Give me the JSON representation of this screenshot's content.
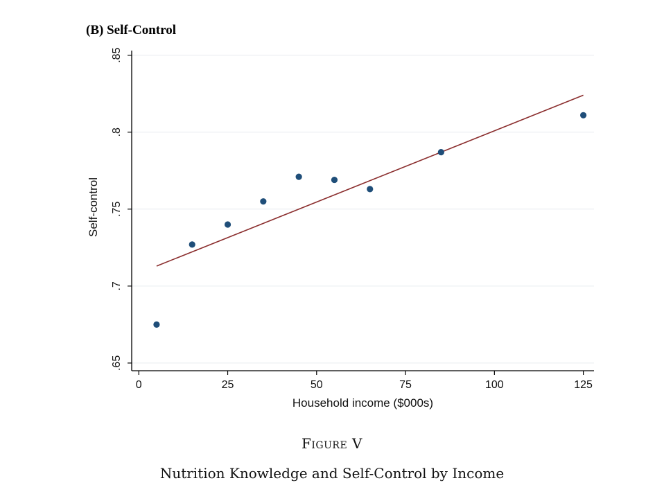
{
  "figure": {
    "label": "Figure V",
    "caption": "Nutrition Knowledge and Self-Control by Income"
  },
  "chart_data": {
    "type": "scatter",
    "title": "(B)  Self-Control",
    "xlabel": "Household income ($000s)",
    "ylabel": "Self-control",
    "xlim": [
      -2,
      128
    ],
    "ylim": [
      0.645,
      0.853
    ],
    "xticks": [
      0,
      25,
      50,
      75,
      100,
      125
    ],
    "xtick_labels": [
      "0",
      "25",
      "50",
      "75",
      "100",
      "125"
    ],
    "yticks": [
      0.65,
      0.7,
      0.75,
      0.8,
      0.85
    ],
    "ytick_labels": [
      ".65",
      ".7",
      ".75",
      ".8",
      ".85"
    ],
    "grid": true,
    "series": [
      {
        "type": "scatter",
        "color": "#1f4e79",
        "x": [
          5,
          15,
          25,
          35,
          45,
          55,
          65,
          85,
          125
        ],
        "y": [
          0.675,
          0.727,
          0.74,
          0.755,
          0.771,
          0.769,
          0.763,
          0.787,
          0.811
        ]
      },
      {
        "type": "line",
        "color": "#8b2e2e",
        "x": [
          5,
          125
        ],
        "y": [
          0.713,
          0.824
        ]
      }
    ]
  }
}
